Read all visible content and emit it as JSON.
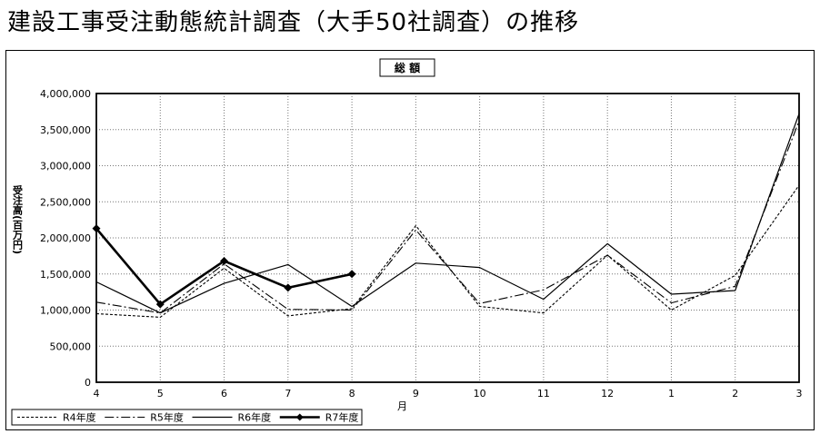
{
  "page": {
    "title": "建設工事受注動態統計調査（大手50社調査）の推移"
  },
  "chart_data": {
    "type": "line",
    "title": "総 額",
    "ylabel": "受注高(百万円)",
    "xlabel": "月",
    "categories": [
      "4",
      "5",
      "6",
      "7",
      "8",
      "9",
      "10",
      "11",
      "12",
      "1",
      "2",
      "3"
    ],
    "ylim": [
      0,
      4000000
    ],
    "yticks": [
      "0",
      "500,000",
      "1,000,000",
      "1,500,000",
      "2,000,000",
      "2,500,000",
      "3,000,000",
      "3,500,000",
      "4,000,000"
    ],
    "grid": "dotted",
    "legend_position": "bottom-left",
    "series": [
      {
        "name": "R4年度",
        "style": "dotted",
        "color": "#000000",
        "values": [
          950000,
          900000,
          1580000,
          920000,
          1020000,
          2170000,
          1050000,
          960000,
          1760000,
          1000000,
          1480000,
          2730000
        ]
      },
      {
        "name": "R5年度",
        "style": "dash-dot",
        "color": "#000000",
        "values": [
          1110000,
          960000,
          1640000,
          1010000,
          1000000,
          2110000,
          1090000,
          1280000,
          1760000,
          1100000,
          1330000,
          3620000
        ]
      },
      {
        "name": "R6年度",
        "style": "solid",
        "color": "#000000",
        "values": [
          1390000,
          960000,
          1370000,
          1630000,
          1050000,
          1650000,
          1590000,
          1150000,
          1920000,
          1220000,
          1270000,
          3720000
        ]
      },
      {
        "name": "R7年度",
        "style": "bold-marker",
        "color": "#000000",
        "values": [
          2130000,
          1080000,
          1680000,
          1310000,
          1500000,
          null,
          null,
          null,
          null,
          null,
          null,
          null
        ]
      }
    ]
  }
}
